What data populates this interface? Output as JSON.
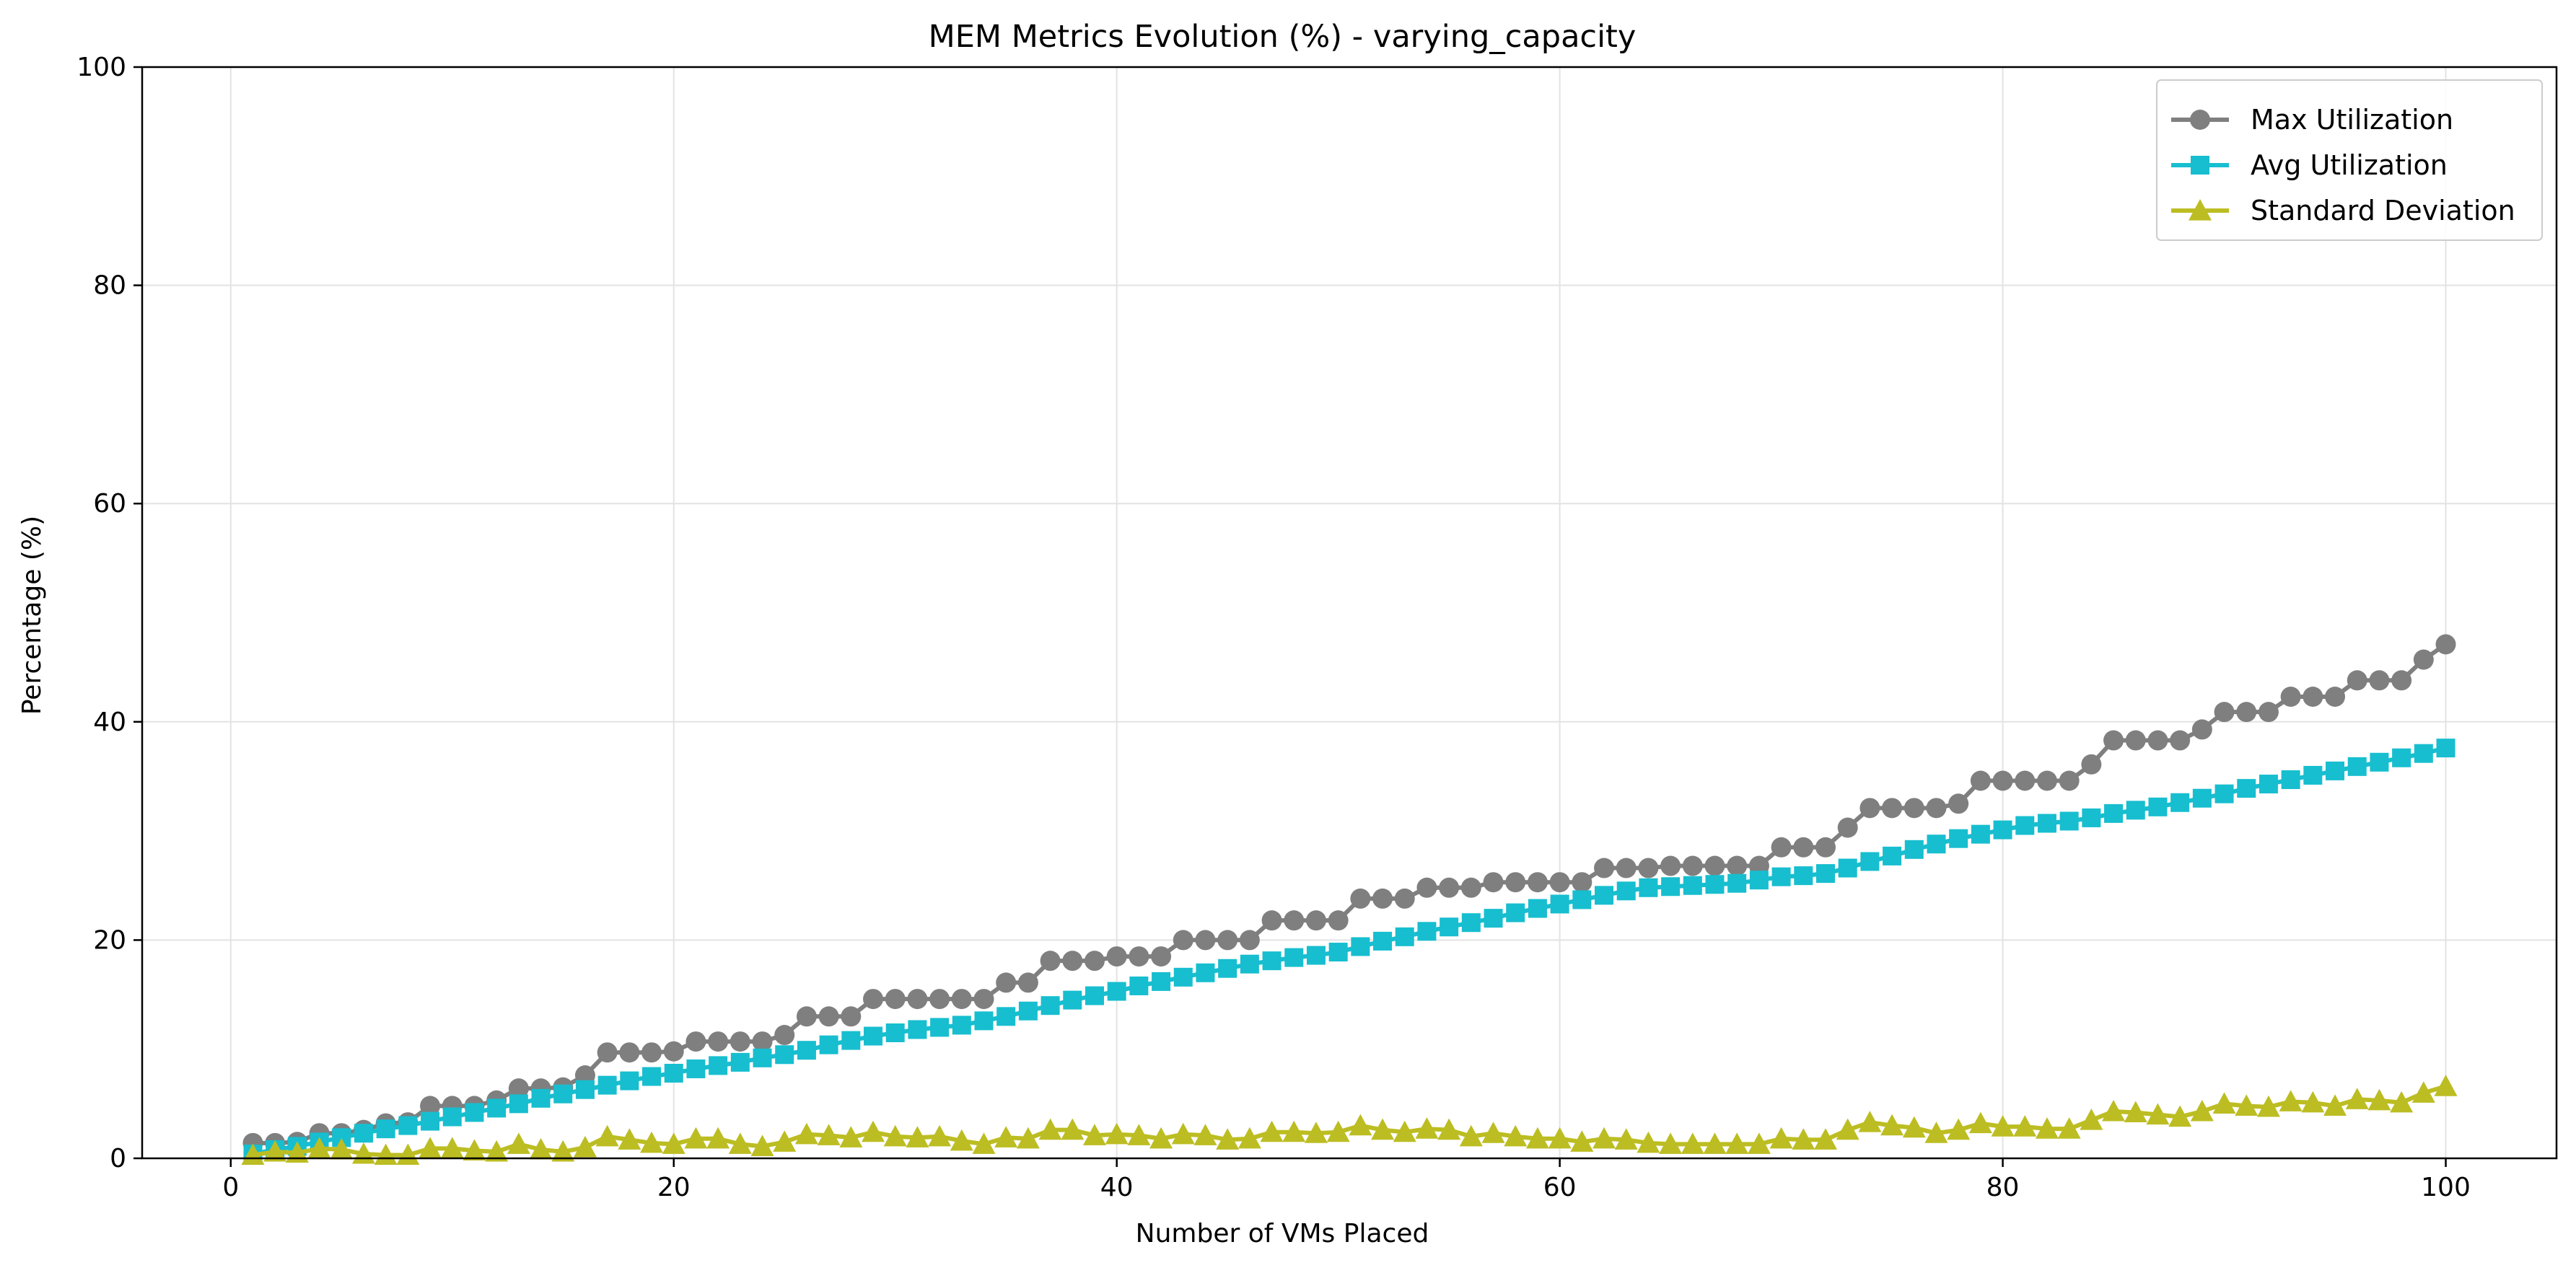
{
  "chart_data": {
    "type": "line",
    "title": "MEM Metrics Evolution (%) - varying_capacity",
    "xlabel": "Number of VMs Placed",
    "ylabel": "Percentage (%)",
    "xlim": [
      -4,
      105
    ],
    "ylim": [
      0,
      100
    ],
    "xticks": [
      0,
      20,
      40,
      60,
      80,
      100
    ],
    "yticks": [
      0,
      20,
      40,
      60,
      80,
      100
    ],
    "grid": true,
    "legend_position": "top-right",
    "x_start": 1,
    "x_step": 1,
    "series": [
      {
        "name": "Max Utilization",
        "color": "#7f7f7f",
        "marker": "circle",
        "values": [
          1.4,
          1.4,
          1.5,
          2.3,
          2.3,
          2.6,
          3.2,
          3.3,
          4.8,
          4.8,
          4.8,
          5.3,
          6.4,
          6.4,
          6.5,
          7.6,
          9.7,
          9.7,
          9.7,
          9.8,
          10.7,
          10.7,
          10.7,
          10.7,
          11.3,
          13.0,
          13.0,
          13.0,
          14.6,
          14.6,
          14.6,
          14.6,
          14.6,
          14.6,
          16.1,
          16.1,
          18.1,
          18.1,
          18.1,
          18.5,
          18.5,
          18.5,
          20.0,
          20.0,
          20.0,
          20.0,
          21.8,
          21.8,
          21.8,
          21.8,
          23.8,
          23.8,
          23.8,
          24.8,
          24.8,
          24.8,
          25.3,
          25.3,
          25.3,
          25.3,
          25.3,
          26.6,
          26.6,
          26.6,
          26.8,
          26.8,
          26.8,
          26.8,
          26.8,
          28.5,
          28.5,
          28.5,
          30.3,
          32.1,
          32.1,
          32.1,
          32.1,
          32.5,
          34.6,
          34.6,
          34.6,
          34.6,
          34.6,
          36.1,
          38.3,
          38.3,
          38.3,
          38.3,
          39.3,
          40.9,
          40.9,
          40.9,
          42.3,
          42.3,
          42.3,
          43.8,
          43.8,
          43.8,
          45.7,
          47.1
        ]
      },
      {
        "name": "Avg Utilization",
        "color": "#17becf",
        "marker": "square",
        "values": [
          0.4,
          0.8,
          1.1,
          1.5,
          1.9,
          2.3,
          2.7,
          3.0,
          3.4,
          3.8,
          4.2,
          4.6,
          5.0,
          5.5,
          5.9,
          6.3,
          6.7,
          7.1,
          7.5,
          7.8,
          8.2,
          8.5,
          8.8,
          9.2,
          9.5,
          9.9,
          10.4,
          10.8,
          11.2,
          11.5,
          11.8,
          12.0,
          12.2,
          12.6,
          13.0,
          13.5,
          14.0,
          14.5,
          14.9,
          15.3,
          15.8,
          16.2,
          16.6,
          17.0,
          17.4,
          17.8,
          18.1,
          18.4,
          18.6,
          18.9,
          19.4,
          19.9,
          20.3,
          20.8,
          21.2,
          21.6,
          22.0,
          22.5,
          22.9,
          23.3,
          23.7,
          24.1,
          24.5,
          24.8,
          24.9,
          25.0,
          25.1,
          25.2,
          25.5,
          25.8,
          25.9,
          26.1,
          26.6,
          27.2,
          27.7,
          28.3,
          28.8,
          29.3,
          29.7,
          30.1,
          30.5,
          30.7,
          30.9,
          31.2,
          31.6,
          31.9,
          32.2,
          32.6,
          33.0,
          33.4,
          33.9,
          34.3,
          34.7,
          35.1,
          35.5,
          35.9,
          36.3,
          36.7,
          37.1,
          37.6
        ]
      },
      {
        "name": "Standard Deviation",
        "color": "#bcbd22",
        "marker": "triangle",
        "values": [
          0.3,
          0.6,
          0.5,
          0.9,
          0.8,
          0.4,
          0.3,
          0.3,
          0.9,
          0.9,
          0.7,
          0.6,
          1.3,
          0.8,
          0.6,
          1.0,
          2.0,
          1.7,
          1.4,
          1.3,
          1.8,
          1.8,
          1.3,
          1.1,
          1.5,
          2.2,
          2.1,
          1.9,
          2.4,
          2.0,
          1.9,
          2.0,
          1.6,
          1.3,
          1.9,
          1.8,
          2.6,
          2.6,
          2.1,
          2.2,
          2.1,
          1.8,
          2.2,
          2.1,
          1.7,
          1.8,
          2.4,
          2.4,
          2.3,
          2.4,
          3.0,
          2.6,
          2.4,
          2.7,
          2.6,
          2.0,
          2.3,
          2.0,
          1.8,
          1.8,
          1.5,
          1.8,
          1.7,
          1.4,
          1.3,
          1.3,
          1.3,
          1.3,
          1.3,
          1.8,
          1.7,
          1.7,
          2.6,
          3.3,
          3.0,
          2.8,
          2.3,
          2.6,
          3.2,
          2.9,
          2.9,
          2.7,
          2.7,
          3.5,
          4.3,
          4.2,
          4.0,
          3.8,
          4.3,
          5.0,
          4.8,
          4.7,
          5.2,
          5.1,
          4.8,
          5.4,
          5.3,
          5.1,
          6.0,
          6.6
        ]
      }
    ]
  }
}
